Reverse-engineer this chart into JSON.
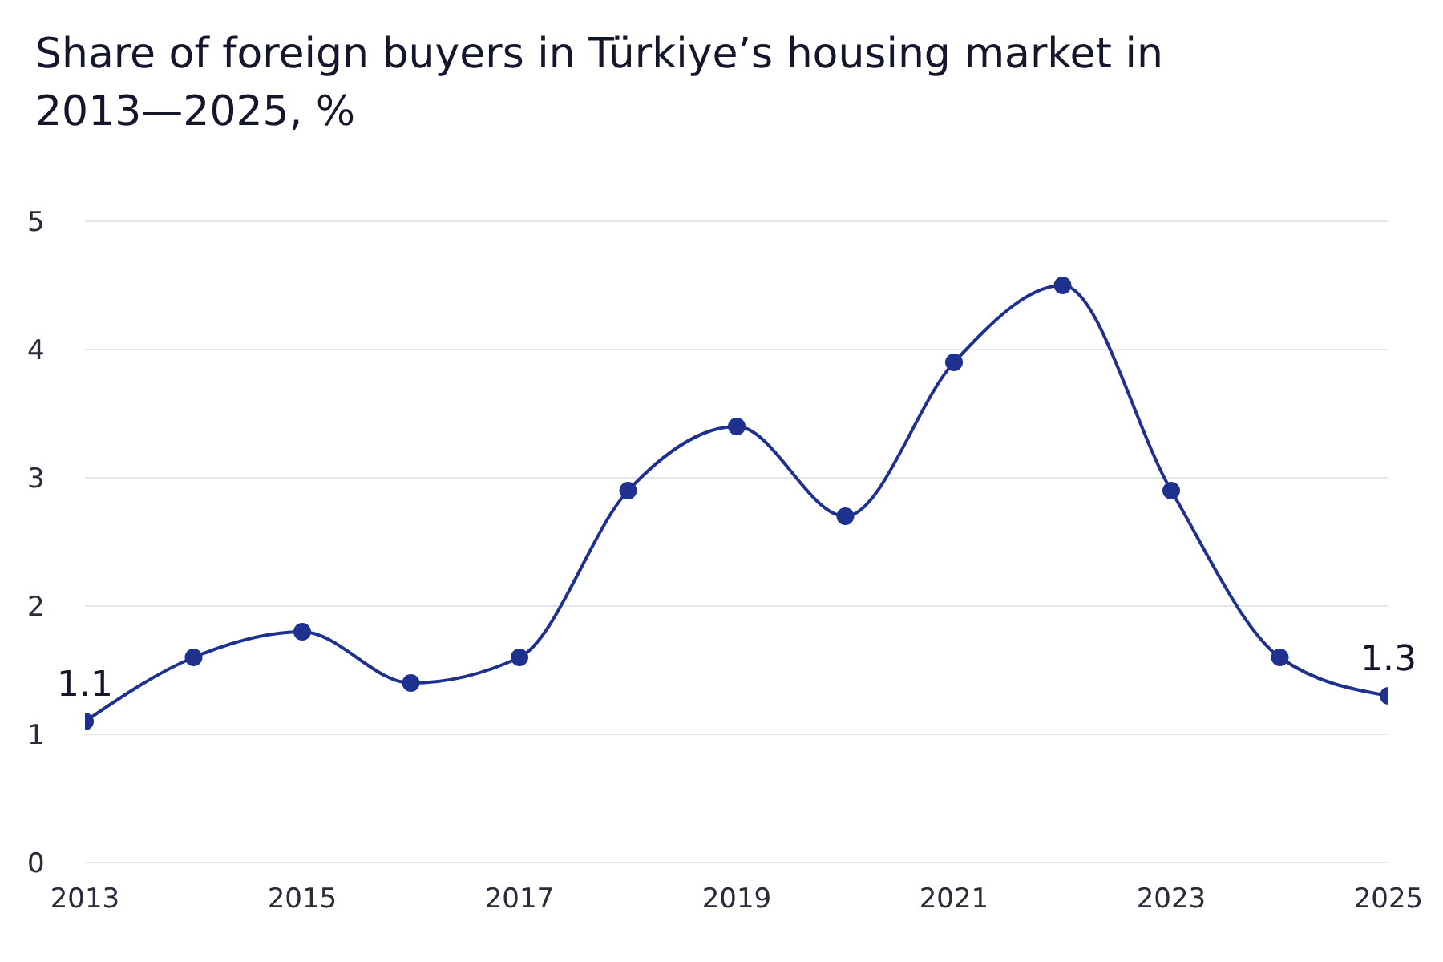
{
  "chart_data": {
    "type": "line",
    "title": "Share of foreign buyers in Türkiye’s housing market in 2013—2025, %",
    "x": [
      2013,
      2014,
      2015,
      2016,
      2017,
      2018,
      2019,
      2020,
      2021,
      2022,
      2023,
      2024,
      2025
    ],
    "series": [
      {
        "color": "#1f318f",
        "values": [
          1.1,
          1.6,
          1.8,
          1.4,
          1.6,
          2.9,
          3.4,
          2.7,
          3.9,
          4.5,
          2.9,
          1.6,
          1.3
        ],
        "value_labels": [
          "1.1",
          null,
          null,
          null,
          null,
          null,
          null,
          null,
          null,
          null,
          null,
          null,
          "1.3"
        ]
      }
    ],
    "xlim": [
      2013,
      2025
    ],
    "xticks": [
      2013,
      2015,
      2017,
      2019,
      2021,
      2023,
      2025
    ],
    "ylim": [
      0,
      5
    ],
    "yticks": [
      0,
      1,
      2,
      3,
      4,
      5
    ],
    "grid": "y",
    "marker": "circle",
    "line_style": "solid"
  }
}
